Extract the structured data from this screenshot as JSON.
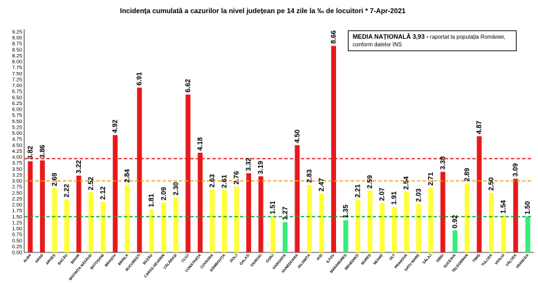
{
  "chart_data": {
    "type": "bar",
    "title": "Incidența cumulată a cazurilor la nivel județean pe 14 zile la ‰ de locuitori *   7-Apr-2021",
    "categories": [
      "ALBA",
      "ARAD",
      "ARGEȘ",
      "BACĂU",
      "BIHOR",
      "BISTRIȚA-NĂSĂUD",
      "BOTOȘANI",
      "BRAȘOV",
      "BRĂILA",
      "BUCUREȘTI",
      "BUZĂU",
      "CARAȘ-SEVERIN",
      "CĂLĂRAȘI",
      "CLUJ",
      "CONSTANȚA",
      "COVASNA",
      "DÂMBOVIȚA",
      "DOLJ",
      "GALAȚI",
      "GIURGIU",
      "GORJ",
      "HARGHITA",
      "HUNEDOARA",
      "IALOMIȚA",
      "IAȘI",
      "ILFOV",
      "MARAMUREȘ",
      "MEHEDINȚI",
      "MUREȘ",
      "NEAMȚ",
      "OLT",
      "PRAHOVA",
      "SATU MARE",
      "SĂLAJ",
      "SIBIU",
      "SUCEAVA",
      "TELEORMAN",
      "TIMIȘ",
      "TULCEA",
      "VASLUI",
      "VÂLCEA",
      "VRANCEA"
    ],
    "values": [
      3.82,
      3.86,
      2.69,
      2.22,
      3.22,
      2.52,
      2.12,
      4.92,
      2.84,
      6.91,
      1.81,
      2.09,
      2.3,
      6.62,
      4.18,
      2.63,
      2.61,
      2.76,
      3.32,
      3.19,
      1.51,
      1.27,
      4.5,
      2.83,
      2.47,
      8.66,
      1.35,
      2.21,
      2.59,
      2.07,
      1.91,
      2.54,
      2.03,
      2.71,
      3.38,
      0.92,
      2.89,
      4.87,
      2.5,
      1.54,
      3.09,
      1.5
    ],
    "value_labels": [
      "3.82",
      "3.86",
      "2.69",
      "2.22",
      "3.22",
      "2.52",
      "2.12",
      "4.92",
      "2.84",
      "6.91",
      "1.81",
      "2.09",
      "2.30",
      "6.62",
      "4.18",
      "2.63",
      "2.61",
      "2.76",
      "3.32",
      "3.19",
      "1.51",
      "1.27",
      "4.50",
      "2.83",
      "2.47",
      "8.66",
      "1.35",
      "2.21",
      "2.59",
      "2.07",
      "1.91",
      "2.54",
      "2.03",
      "2.71",
      "3.38",
      "0.92",
      "2.89",
      "4.87",
      "2.50",
      "1.54",
      "3.09",
      "1.50"
    ],
    "ylim": [
      0,
      9.25
    ],
    "yticks": [
      "0.00",
      "0.25",
      "0.50",
      "0.75",
      "1.00",
      "1.25",
      "1.50",
      "1.75",
      "2.00",
      "2.25",
      "2.50",
      "2.75",
      "3.00",
      "3.25",
      "3.50",
      "3.75",
      "4.00",
      "4.25",
      "4.50",
      "4.75",
      "5.00",
      "5.25",
      "5.50",
      "5.75",
      "6.00",
      "6.25",
      "6.50",
      "6.75",
      "7.00",
      "7.25",
      "7.50",
      "7.75",
      "8.00",
      "8.25",
      "8.50",
      "8.75",
      "9.00",
      "9.25"
    ],
    "reference_lines": [
      {
        "value": 3.93,
        "color": "#e8191c"
      },
      {
        "value": 3.0,
        "color": "#f0a21a"
      },
      {
        "value": 1.5,
        "color": "#1b9e38"
      }
    ],
    "colors": {
      "red": "#e8191c",
      "yellow": "#ffff33",
      "green": "#33ee77"
    },
    "grid": false,
    "legend": "none"
  },
  "annotation": {
    "strong": "MEDIA NAȚIONALĂ  3,93 -",
    "rest1": " raportat la populația României,",
    "rest2": "conform datelor INS"
  }
}
